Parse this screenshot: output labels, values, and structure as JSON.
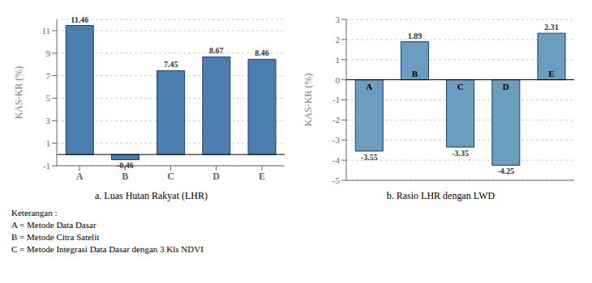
{
  "chart_data": [
    {
      "type": "bar",
      "title": "a. Luas Hutan Rakyat (LHR)",
      "categories": [
        "A",
        "B",
        "C",
        "D",
        "E"
      ],
      "values": [
        11.46,
        -0.46,
        7.45,
        8.67,
        8.46
      ],
      "color": "#4a7eaf",
      "ylabel": "KAS-KR (%)",
      "ylim": [
        -1,
        12
      ],
      "yticks": [
        -1,
        1,
        3,
        5,
        7,
        9,
        11
      ],
      "grid": true,
      "data_labels": true,
      "annotations": [
        "Keterangan :",
        "A = Metode Data Dasar",
        "B = Metode Citra Satelit",
        "C = Metode Integrasi Data Dasar dengan 3 Kls NDVI"
      ]
    },
    {
      "type": "bar",
      "title": "b. Rasio LHR dengan LWD",
      "categories": [
        "A",
        "B",
        "C",
        "D",
        "E"
      ],
      "values": [
        -3.55,
        1.89,
        -3.35,
        -4.25,
        2.31
      ],
      "color": "#6a9dbe",
      "ylabel": "KAS-KR (%)",
      "ylim": [
        -5,
        3
      ],
      "yticks": [
        -5,
        -4,
        -3,
        -2,
        -1,
        0,
        1,
        2,
        3
      ],
      "grid": true,
      "data_labels": true,
      "tick_labels": "y"
    }
  ]
}
